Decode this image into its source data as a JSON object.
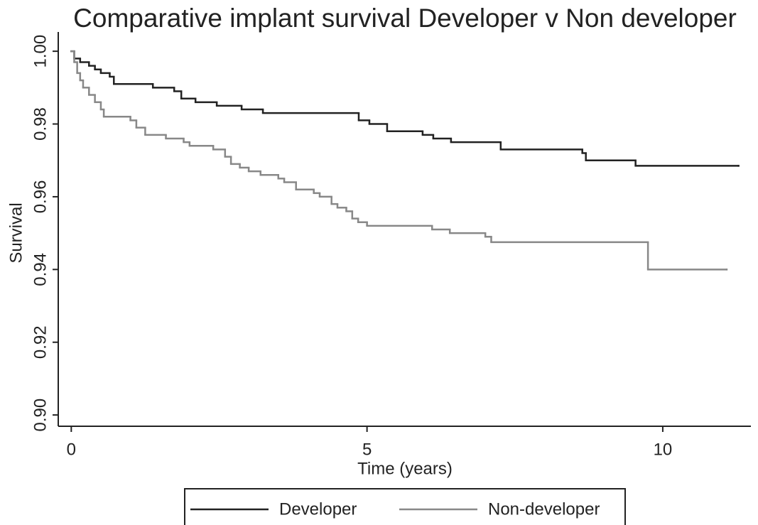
{
  "chart_data": {
    "type": "step-line",
    "title": "Comparative implant survival Developer v Non developer",
    "x_label": "Time (years)",
    "y_label": "Survival",
    "xlim": [
      -0.22,
      11.49
    ],
    "ylim": [
      0.8969,
      1.0053
    ],
    "xticks": [
      0,
      5,
      10
    ],
    "yticks": [
      {
        "value": 0.9,
        "label": "0.90"
      },
      {
        "value": 0.92,
        "label": "0.92"
      },
      {
        "value": 0.94,
        "label": "0.94"
      },
      {
        "value": 0.96,
        "label": "0.96"
      },
      {
        "value": 0.98,
        "label": "0.98"
      },
      {
        "value": 1.0,
        "label": "1.00"
      }
    ],
    "legend": "bottom",
    "series": [
      {
        "name": "Developer",
        "color": "#222222",
        "x": [
          0,
          0.05,
          0.15,
          0.3,
          0.4,
          0.5,
          0.65,
          0.72,
          1.38,
          1.74,
          1.86,
          2.1,
          2.46,
          2.88,
          3.24,
          4.86,
          5.04,
          5.34,
          5.94,
          6.12,
          6.42,
          7.26,
          8.64,
          8.7,
          9.54,
          11.28
        ],
        "values": [
          1.0,
          0.998,
          0.997,
          0.996,
          0.995,
          0.994,
          0.993,
          0.991,
          0.99,
          0.989,
          0.987,
          0.986,
          0.985,
          0.984,
          0.983,
          0.981,
          0.98,
          0.978,
          0.977,
          0.976,
          0.975,
          0.973,
          0.972,
          0.97,
          0.9685,
          0.9685
        ]
      },
      {
        "name": "Non-developer",
        "color": "#888888",
        "x": [
          0,
          0.05,
          0.1,
          0.15,
          0.2,
          0.3,
          0.4,
          0.5,
          0.55,
          1.0,
          1.1,
          1.25,
          1.6,
          1.9,
          2.0,
          2.4,
          2.6,
          2.7,
          2.85,
          3.0,
          3.2,
          3.5,
          3.6,
          3.8,
          4.1,
          4.2,
          4.4,
          4.5,
          4.65,
          4.75,
          4.85,
          5.0,
          6.1,
          6.4,
          7.0,
          7.1,
          9.75,
          11.08
        ],
        "values": [
          1.0,
          0.997,
          0.994,
          0.992,
          0.99,
          0.988,
          0.986,
          0.984,
          0.982,
          0.981,
          0.979,
          0.977,
          0.976,
          0.975,
          0.974,
          0.973,
          0.971,
          0.969,
          0.968,
          0.967,
          0.966,
          0.965,
          0.964,
          0.962,
          0.961,
          0.96,
          0.958,
          0.957,
          0.956,
          0.954,
          0.953,
          0.952,
          0.951,
          0.95,
          0.949,
          0.9475,
          0.94,
          0.94
        ]
      }
    ]
  }
}
